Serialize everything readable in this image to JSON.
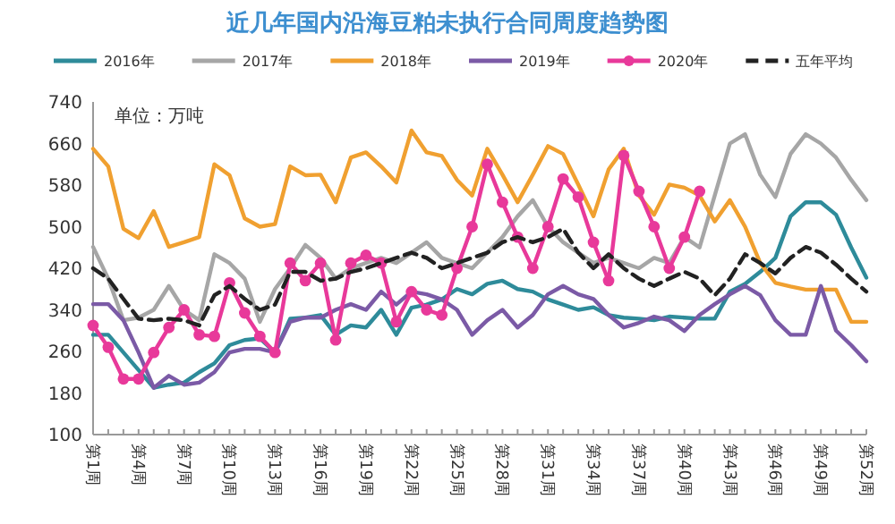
{
  "chart_data": {
    "type": "line",
    "title": "近几年国内沿海豆粕未执行合同周度趋势图",
    "annotations": [
      "单位：万吨"
    ],
    "categories": [
      "第1周",
      null,
      null,
      "第4周",
      null,
      null,
      "第7周",
      null,
      null,
      "第10周",
      null,
      null,
      "第13周",
      null,
      null,
      "第16周",
      null,
      null,
      "第19周",
      null,
      null,
      "第22周",
      null,
      null,
      "第25周",
      null,
      null,
      "第28周",
      null,
      null,
      "第31周",
      null,
      null,
      "第34周",
      null,
      null,
      "第37周",
      null,
      null,
      "第40周",
      null,
      null,
      "第43周",
      null,
      null,
      "第46周",
      null,
      null,
      "第49周",
      null,
      null,
      "第52周"
    ],
    "ylim": [
      100,
      740
    ],
    "yticks": [
      100,
      180,
      260,
      340,
      420,
      500,
      580,
      660,
      740
    ],
    "grid": false,
    "legend": "top",
    "marker": "none",
    "line_style": "solid",
    "series": [
      {
        "name": "2016年",
        "color": "#2e8b9a",
        "values": [
          292,
          292,
          258,
          224,
          190,
          196,
          200,
          220,
          237,
          272,
          282,
          285,
          258,
          323,
          325,
          330,
          292,
          310,
          306,
          340,
          292,
          344,
          350,
          360,
          380,
          370,
          390,
          396,
          380,
          375,
          360,
          350,
          340,
          345,
          330,
          325,
          323,
          320,
          327,
          325,
          323,
          323,
          375,
          390,
          413,
          440,
          520,
          547,
          547,
          523,
          460,
          402
        ]
      },
      {
        "name": "2017年",
        "color": "#a6a6a6",
        "values": [
          461,
          400,
          320,
          325,
          340,
          386,
          340,
          320,
          447,
          430,
          400,
          317,
          380,
          420,
          465,
          440,
          400,
          420,
          430,
          440,
          430,
          450,
          470,
          440,
          430,
          420,
          450,
          480,
          520,
          551,
          500,
          470,
          450,
          430,
          440,
          430,
          420,
          440,
          430,
          480,
          460,
          560,
          660,
          678,
          600,
          557,
          640,
          678,
          660,
          633,
          590,
          551
        ]
      },
      {
        "name": "2018年",
        "color": "#f0a030",
        "values": [
          650,
          616,
          496,
          478,
          530,
          461,
          470,
          480,
          620,
          599,
          516,
          500,
          505,
          616,
          599,
          600,
          547,
          633,
          643,
          616,
          585,
          685,
          643,
          636,
          590,
          560,
          650,
          600,
          547,
          600,
          655,
          640,
          581,
          520,
          610,
          650,
          560,
          523,
          581,
          575,
          560,
          510,
          551,
          500,
          430,
          392,
          385,
          379,
          379,
          379,
          317,
          317
        ]
      },
      {
        "name": "2019年",
        "color": "#7b5aa6",
        "values": [
          351,
          351,
          320,
          258,
          190,
          213,
          196,
          200,
          220,
          258,
          265,
          265,
          258,
          317,
          325,
          325,
          340,
          351,
          340,
          375,
          350,
          375,
          370,
          360,
          340,
          292,
          320,
          340,
          306,
          330,
          370,
          386,
          370,
          361,
          330,
          306,
          315,
          327,
          320,
          299,
          330,
          351,
          370,
          386,
          368,
          320,
          292,
          292,
          386,
          300,
          272,
          241
        ]
      },
      {
        "name": "2020年",
        "color": "#e8399a",
        "marker": "circle",
        "values": [
          310,
          268,
          207,
          207,
          258,
          306,
          340,
          292,
          289,
          392,
          334,
          289,
          258,
          430,
          396,
          430,
          282,
          430,
          445,
          430,
          317,
          375,
          340,
          330,
          420,
          500,
          620,
          547,
          480,
          420,
          500,
          592,
          557,
          470,
          396,
          637,
          568,
          500,
          420,
          480,
          568,
          null,
          null,
          null,
          null,
          null,
          null,
          null,
          null,
          null,
          null,
          null
        ]
      },
      {
        "name": "五年平均",
        "color": "#222222",
        "line_style": "dashed",
        "values": [
          420,
          400,
          361,
          323,
          320,
          323,
          320,
          310,
          368,
          386,
          361,
          340,
          350,
          413,
          413,
          396,
          400,
          413,
          420,
          430,
          440,
          450,
          440,
          420,
          430,
          440,
          450,
          470,
          480,
          470,
          480,
          496,
          450,
          420,
          447,
          420,
          400,
          386,
          400,
          413,
          400,
          368,
          400,
          447,
          430,
          410,
          440,
          461,
          450,
          427,
          400,
          375
        ]
      }
    ]
  }
}
